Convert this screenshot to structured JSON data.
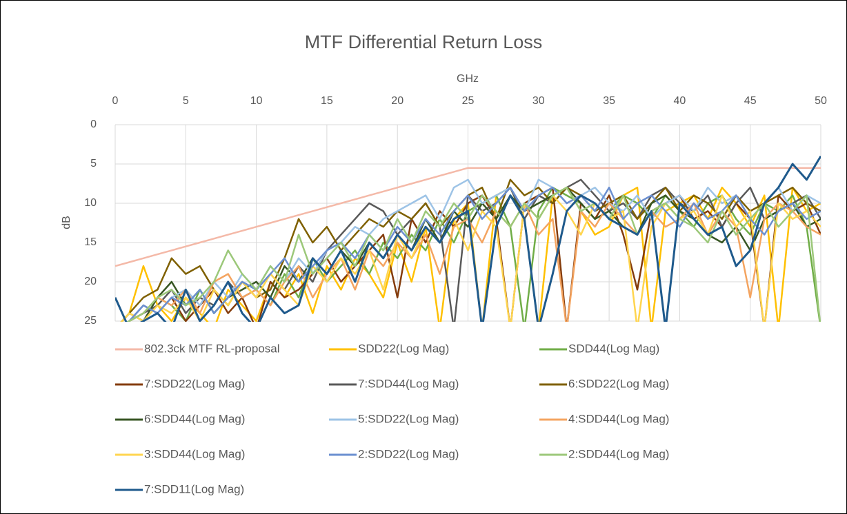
{
  "chart_data": {
    "type": "line",
    "title": "MTF Differential Return Loss",
    "x_label": "GHz",
    "y_label": "dB",
    "xlim": [
      0,
      50
    ],
    "xticks": [
      0,
      5,
      10,
      15,
      20,
      25,
      30,
      35,
      40,
      45,
      50
    ],
    "ylim": [
      0,
      25
    ],
    "yticks": [
      0,
      5,
      10,
      15,
      20,
      25
    ],
    "y_inverted": true,
    "x_axis_position": "top",
    "grid": true,
    "legend": "bottom",
    "x": [
      0,
      1,
      2,
      3,
      4,
      5,
      6,
      7,
      8,
      9,
      10,
      11,
      12,
      13,
      14,
      15,
      16,
      17,
      18,
      19,
      20,
      21,
      22,
      23,
      24,
      25,
      26,
      27,
      28,
      29,
      30,
      31,
      32,
      33,
      34,
      35,
      36,
      37,
      38,
      39,
      40,
      41,
      42,
      43,
      44,
      45,
      46,
      47,
      48,
      49,
      50
    ],
    "series": [
      {
        "name": "802.3ck MTF RL-proposal",
        "color": "#f4b9a8",
        "values": [
          18,
          17.5,
          17,
          16.5,
          16,
          15.5,
          15,
          14.5,
          14,
          13.5,
          13,
          12.5,
          12,
          11.5,
          11,
          10.5,
          10,
          9.5,
          9,
          8.5,
          8,
          7.5,
          7,
          6.5,
          6,
          5.5,
          5.5,
          5.5,
          5.5,
          5.5,
          5.5,
          5.5,
          5.5,
          5.5,
          5.5,
          5.5,
          5.5,
          5.5,
          5.5,
          5.5,
          5.5,
          5.5,
          5.5,
          5.5,
          5.5,
          5.5,
          5.5,
          5.5,
          5.5,
          5.5,
          5.5
        ]
      },
      {
        "name": "SDD22(Log Mag)",
        "color": "#ffc000",
        "values": [
          26,
          24,
          18,
          23,
          25,
          22,
          24,
          26,
          21,
          23,
          25,
          20,
          22,
          19,
          24,
          18,
          21,
          17,
          19,
          22,
          15,
          20,
          13,
          26,
          12,
          10,
          26,
          9,
          8,
          12,
          26,
          9,
          8,
          11,
          14,
          13,
          9,
          8,
          26,
          11,
          10,
          9,
          12,
          8,
          10,
          13,
          9,
          26,
          8,
          11,
          10
        ]
      },
      {
        "name": "SDD44(Log Mag)",
        "color": "#70ad47",
        "values": [
          26,
          25,
          24,
          22,
          23,
          25,
          21,
          24,
          22,
          20,
          21,
          23,
          19,
          22,
          17,
          20,
          18,
          16,
          19,
          15,
          17,
          14,
          16,
          12,
          15,
          11,
          10,
          9,
          13,
          26,
          11,
          8,
          9,
          10,
          12,
          11,
          9,
          10,
          12,
          9,
          11,
          13,
          10,
          9,
          12,
          14,
          10,
          11,
          9,
          13,
          26
        ]
      },
      {
        "name": "7:SDD22(Log Mag)",
        "color": "#843c0c",
        "values": [
          26,
          25,
          23,
          24,
          22,
          25,
          23,
          21,
          24,
          22,
          26,
          20,
          22,
          21,
          19,
          17,
          20,
          18,
          16,
          14,
          22,
          12,
          15,
          11,
          13,
          10,
          9,
          12,
          26,
          10,
          9,
          8,
          26,
          10,
          12,
          9,
          14,
          21,
          11,
          10,
          9,
          12,
          11,
          13,
          10,
          12,
          26,
          9,
          11,
          10,
          14
        ]
      },
      {
        "name": "7:SDD44(Log Mag)",
        "color": "#595959",
        "values": [
          26,
          25,
          24,
          23,
          21,
          24,
          22,
          23,
          20,
          22,
          21,
          19,
          21,
          18,
          20,
          16,
          14,
          12,
          10,
          11,
          14,
          12,
          10,
          13,
          26,
          9,
          11,
          10,
          8,
          12,
          9,
          10,
          8,
          7,
          9,
          11,
          10,
          12,
          9,
          8,
          10,
          11,
          9,
          13,
          10,
          8,
          12,
          11,
          10,
          9,
          12
        ]
      },
      {
        "name": "6:SDD22(Log Mag)",
        "color": "#7f6000",
        "values": [
          26,
          24,
          22,
          21,
          17,
          19,
          18,
          21,
          23,
          20,
          22,
          21,
          17,
          12,
          15,
          13,
          16,
          14,
          12,
          13,
          11,
          12,
          10,
          13,
          11,
          9,
          8,
          12,
          7,
          9,
          8,
          10,
          8,
          9,
          11,
          10,
          9,
          12,
          10,
          8,
          11,
          9,
          10,
          12,
          9,
          11,
          10,
          9,
          8,
          10,
          11
        ]
      },
      {
        "name": "6:SDD44(Log Mag)",
        "color": "#375623",
        "values": [
          26,
          24,
          25,
          22,
          20,
          23,
          21,
          24,
          22,
          21,
          20,
          22,
          18,
          20,
          17,
          19,
          16,
          18,
          15,
          17,
          14,
          16,
          12,
          15,
          11,
          13,
          10,
          12,
          9,
          11,
          10,
          9,
          8,
          10,
          12,
          11,
          13,
          14,
          10,
          9,
          11,
          12,
          14,
          15,
          13,
          16,
          12,
          11,
          10,
          13,
          12
        ]
      },
      {
        "name": "5:SDD22(Log Mag)",
        "color": "#9dc3e6",
        "values": [
          26,
          25,
          23,
          24,
          22,
          21,
          23,
          20,
          22,
          19,
          21,
          18,
          20,
          17,
          19,
          16,
          15,
          13,
          14,
          12,
          11,
          10,
          9,
          12,
          8,
          7,
          10,
          9,
          8,
          11,
          7,
          8,
          10,
          9,
          8,
          10,
          11,
          9,
          12,
          10,
          9,
          11,
          8,
          10,
          9,
          12,
          10,
          8,
          11,
          9,
          10
        ]
      },
      {
        "name": "4:SDD44(Log Mag)",
        "color": "#f4a460",
        "values": [
          26,
          25,
          24,
          22,
          23,
          21,
          24,
          20,
          19,
          22,
          21,
          23,
          20,
          18,
          22,
          19,
          17,
          21,
          16,
          18,
          15,
          17,
          14,
          19,
          13,
          12,
          15,
          11,
          13,
          10,
          14,
          12,
          26,
          11,
          13,
          10,
          12,
          14,
          11,
          13,
          12,
          10,
          14,
          11,
          13,
          22,
          12,
          10,
          11,
          13,
          14
        ]
      },
      {
        "name": "3:SDD44(Log Mag)",
        "color": "#ffd54f",
        "values": [
          26,
          24,
          25,
          23,
          24,
          22,
          25,
          21,
          23,
          20,
          22,
          19,
          21,
          23,
          18,
          20,
          17,
          19,
          16,
          21,
          14,
          17,
          13,
          15,
          12,
          16,
          11,
          13,
          26,
          10,
          12,
          9,
          11,
          14,
          10,
          12,
          11,
          26,
          13,
          10,
          12,
          11,
          14,
          9,
          13,
          11,
          26,
          10,
          12,
          11,
          13
        ]
      },
      {
        "name": "2:SDD22(Log Mag)",
        "color": "#6b8fd0",
        "values": [
          26,
          25,
          23,
          24,
          22,
          23,
          21,
          24,
          22,
          20,
          21,
          19,
          17,
          20,
          18,
          16,
          15,
          17,
          14,
          16,
          13,
          15,
          12,
          14,
          11,
          9,
          12,
          10,
          8,
          11,
          9,
          8,
          10,
          9,
          11,
          8,
          12,
          10,
          9,
          11,
          13,
          10,
          12,
          11,
          9,
          12,
          14,
          11,
          10,
          12,
          11
        ]
      },
      {
        "name": "2:SDD44(Log Mag)",
        "color": "#9cc87a",
        "values": [
          26,
          25,
          24,
          22,
          21,
          23,
          22,
          20,
          16,
          19,
          21,
          18,
          20,
          14,
          19,
          17,
          15,
          18,
          14,
          16,
          12,
          15,
          11,
          13,
          10,
          12,
          9,
          11,
          13,
          10,
          12,
          9,
          8,
          11,
          10,
          12,
          9,
          14,
          11,
          10,
          12,
          13,
          15,
          11,
          14,
          12,
          10,
          13,
          11,
          9,
          26
        ]
      },
      {
        "name": "7:SDD11(Log Mag)",
        "color": "#1f5a8c",
        "values": [
          22,
          26,
          25,
          24,
          26,
          21,
          25,
          23,
          20,
          24,
          26,
          22,
          24,
          23,
          17,
          19,
          16,
          20,
          15,
          17,
          14,
          16,
          13,
          15,
          12,
          11,
          26,
          13,
          9,
          12,
          26,
          19,
          11,
          9,
          10,
          12,
          13,
          14,
          11,
          26,
          10,
          12,
          14,
          13,
          18,
          16,
          10,
          8,
          5,
          7,
          4
        ]
      }
    ]
  }
}
